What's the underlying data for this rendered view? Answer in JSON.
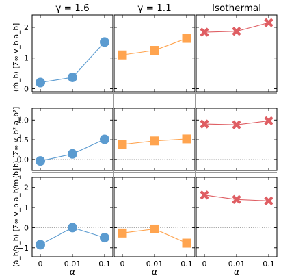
{
  "figure": {
    "column_titles": [
      "γ = 1.6",
      "γ = 1.1",
      "Isothermal"
    ],
    "row_ylabels": [
      "⟨ṁ_b⟩ [Σ∞ v_b a_b]",
      "⟨L̇_b⟩ [Σ∞ v_b² a_b²]",
      "⟨ȧ_b/a_b⟩ [Σ∞ v_b a_b/m_b]"
    ],
    "xlabel": "α",
    "colors": {
      "gamma_1_6": "#5b9bd0",
      "gamma_1_1": "#ffa44f",
      "isothermal": "#df5e63"
    }
  },
  "chart_data": [
    {
      "type": "line",
      "title": "γ = 1.6",
      "ylabel": "⟨ṁ_b⟩ [Σ∞ v_b a_b]",
      "xlabel": "",
      "categories": [
        "0",
        "0.01",
        "0.1"
      ],
      "series": [
        {
          "values": [
            0.2,
            0.37,
            1.52
          ],
          "marker": "circle",
          "color": "#5b9bd0"
        }
      ],
      "ylim": [
        -0.1,
        2.4
      ],
      "yticks": [
        0,
        1,
        2
      ],
      "reference_line": null,
      "grid": false
    },
    {
      "type": "line",
      "title": "γ = 1.1",
      "ylabel": "",
      "xlabel": "",
      "categories": [
        "0",
        "0.01",
        "0.1"
      ],
      "series": [
        {
          "values": [
            1.1,
            1.25,
            1.64
          ],
          "marker": "square",
          "color": "#ffa44f"
        }
      ],
      "ylim": [
        -0.1,
        2.4
      ],
      "yticks": [
        0,
        1,
        2
      ],
      "reference_line": null,
      "grid": false
    },
    {
      "type": "line",
      "title": "Isothermal",
      "ylabel": "",
      "xlabel": "",
      "categories": [
        "0",
        "0.01",
        "0.1"
      ],
      "series": [
        {
          "values": [
            1.84,
            1.87,
            2.15
          ],
          "marker": "x",
          "color": "#df5e63"
        }
      ],
      "ylim": [
        -0.1,
        2.4
      ],
      "yticks": [
        0,
        1,
        2
      ],
      "reference_line": null,
      "grid": false
    },
    {
      "type": "line",
      "title": "",
      "ylabel": "⟨L̇_b⟩ [Σ∞ v_b² a_b²]",
      "xlabel": "",
      "categories": [
        "0",
        "0.01",
        "0.1"
      ],
      "series": [
        {
          "values": [
            -0.04,
            0.14,
            0.51
          ],
          "marker": "circle",
          "color": "#5b9bd0"
        }
      ],
      "ylim": [
        -0.28,
        1.3
      ],
      "yticks": [
        0.0,
        0.5,
        1.0
      ],
      "reference_line": 0,
      "grid": false
    },
    {
      "type": "line",
      "title": "",
      "ylabel": "",
      "xlabel": "",
      "categories": [
        "0",
        "0.01",
        "0.1"
      ],
      "series": [
        {
          "values": [
            0.38,
            0.47,
            0.52
          ],
          "marker": "square",
          "color": "#ffa44f"
        }
      ],
      "ylim": [
        -0.28,
        1.3
      ],
      "yticks": [
        0.0,
        0.5,
        1.0
      ],
      "reference_line": 0,
      "grid": false
    },
    {
      "type": "line",
      "title": "",
      "ylabel": "",
      "xlabel": "",
      "categories": [
        "0",
        "0.01",
        "0.1"
      ],
      "series": [
        {
          "values": [
            0.9,
            0.88,
            0.98
          ],
          "marker": "x",
          "color": "#df5e63"
        }
      ],
      "ylim": [
        -0.28,
        1.3
      ],
      "yticks": [
        0.0,
        0.5,
        1.0
      ],
      "reference_line": 0,
      "grid": false
    },
    {
      "type": "line",
      "title": "",
      "ylabel": "⟨ȧ_b/a_b⟩ [Σ∞ v_b a_b/m_b]",
      "xlabel": "α",
      "categories": [
        "0",
        "0.01",
        "0.1"
      ],
      "series": [
        {
          "values": [
            -0.85,
            0.0,
            -0.5
          ],
          "marker": "circle",
          "color": "#5b9bd0"
        }
      ],
      "ylim": [
        -1.45,
        2.5
      ],
      "yticks": [
        -1,
        0,
        1,
        2
      ],
      "reference_line": 0,
      "grid": false
    },
    {
      "type": "line",
      "title": "",
      "ylabel": "",
      "xlabel": "α",
      "categories": [
        "0",
        "0.01",
        "0.1"
      ],
      "series": [
        {
          "values": [
            -0.27,
            -0.07,
            -0.77
          ],
          "marker": "square",
          "color": "#ffa44f"
        }
      ],
      "ylim": [
        -1.45,
        2.5
      ],
      "yticks": [
        -1,
        0,
        1,
        2
      ],
      "reference_line": 0,
      "grid": false
    },
    {
      "type": "line",
      "title": "",
      "ylabel": "",
      "xlabel": "α",
      "categories": [
        "0",
        "0.01",
        "0.1"
      ],
      "series": [
        {
          "values": [
            1.62,
            1.4,
            1.33
          ],
          "marker": "x",
          "color": "#df5e63"
        }
      ],
      "ylim": [
        -1.45,
        2.5
      ],
      "yticks": [
        -1,
        0,
        1,
        2
      ],
      "reference_line": 0,
      "grid": false
    }
  ]
}
